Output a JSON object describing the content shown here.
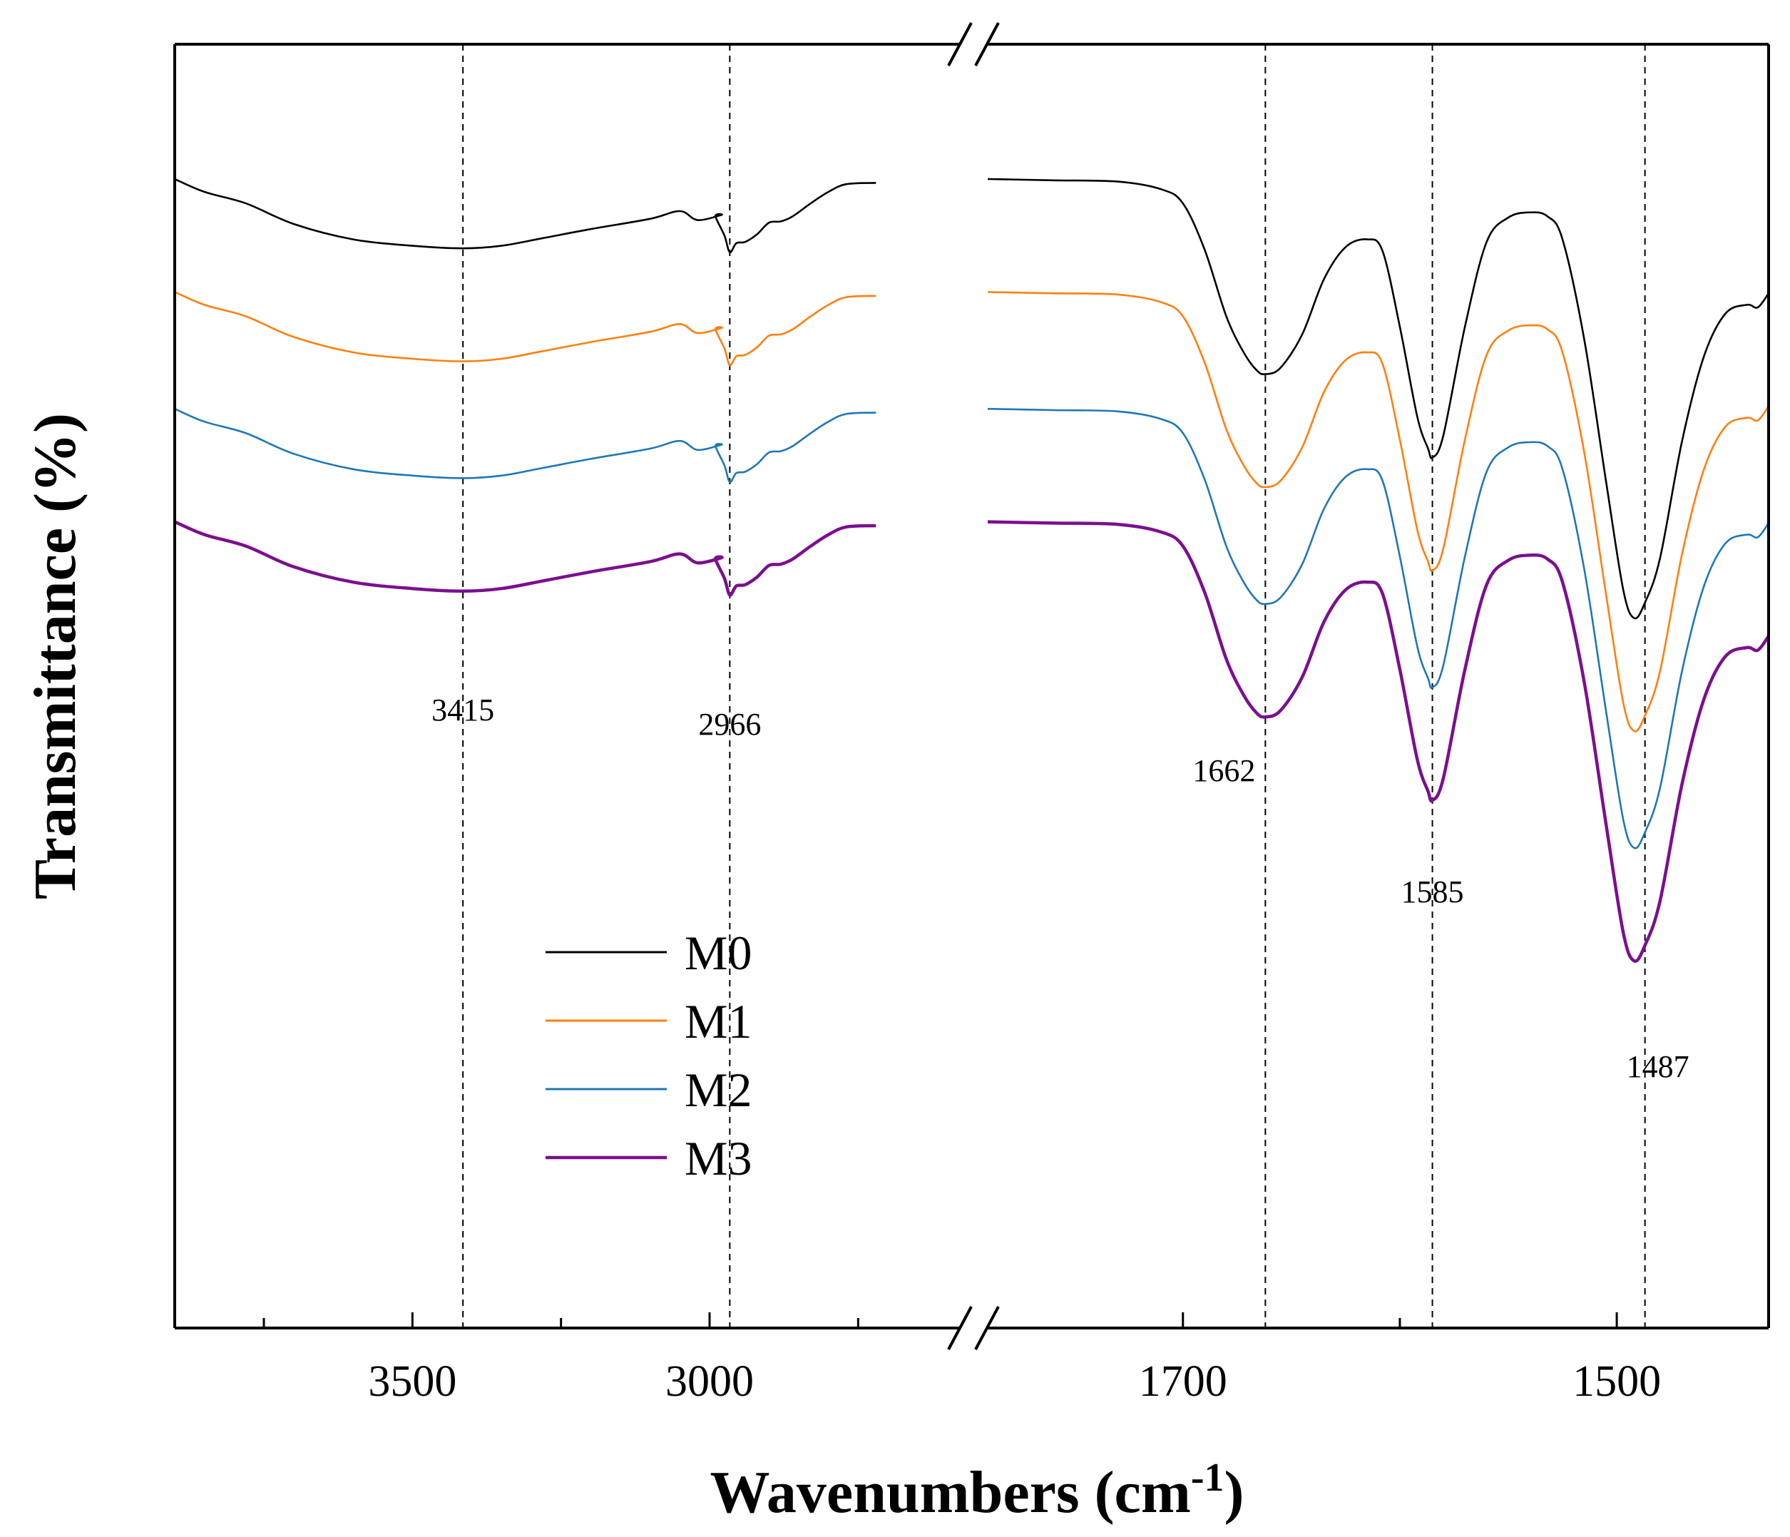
{
  "chart_data": {
    "type": "line",
    "title": "",
    "xlabel": "Wavenumbers (cm",
    "xlabel_superscript": "-1",
    "xlabel_suffix": ")",
    "ylabel": "Transmittance (%)",
    "x_break": true,
    "x_segments": [
      {
        "xlim": [
          3900,
          2580
        ],
        "ticks": [
          3500,
          3000
        ],
        "minor_ticks": [
          3750,
          3250,
          2750
        ]
      },
      {
        "xlim": [
          1790,
          1430
        ],
        "ticks": [
          1700,
          1500
        ],
        "minor_ticks": [
          1600
        ]
      }
    ],
    "yaxis_ticks_shown": false,
    "ylim": [
      0,
      100
    ],
    "reference_lines": [
      {
        "x": 3415,
        "label": "3415"
      },
      {
        "x": 2966,
        "label": "2966"
      },
      {
        "x": 1662,
        "label": "1662"
      },
      {
        "x": 1585,
        "label": "1585"
      },
      {
        "x": 1487,
        "label": "1487"
      }
    ],
    "series": [
      {
        "name": "M0",
        "color": "#000000",
        "offset": 0,
        "seg1": [
          [
            3900,
            89.5
          ],
          [
            3850,
            88.5
          ],
          [
            3780,
            87.6
          ],
          [
            3700,
            86
          ],
          [
            3600,
            84.8
          ],
          [
            3500,
            84.3
          ],
          [
            3415,
            84.1
          ],
          [
            3350,
            84.3
          ],
          [
            3280,
            84.9
          ],
          [
            3200,
            85.6
          ],
          [
            3100,
            86.4
          ],
          [
            3050,
            87
          ],
          [
            3020,
            86.3
          ],
          [
            2980,
            86.7
          ],
          [
            2990,
            86.6
          ],
          [
            2975,
            85.1
          ],
          [
            2966,
            83.8
          ],
          [
            2955,
            84.5
          ],
          [
            2940,
            84.6
          ],
          [
            2920,
            85.2
          ],
          [
            2900,
            86.1
          ],
          [
            2880,
            86.2
          ],
          [
            2860,
            86.6
          ],
          [
            2830,
            87.6
          ],
          [
            2800,
            88.5
          ],
          [
            2770,
            89.1
          ],
          [
            2720,
            89.2
          ]
        ],
        "seg2": [
          [
            1790,
            89.5
          ],
          [
            1760,
            89.4
          ],
          [
            1730,
            89.3
          ],
          [
            1710,
            88.7
          ],
          [
            1700,
            87.6
          ],
          [
            1690,
            84
          ],
          [
            1680,
            78.8
          ],
          [
            1672,
            76
          ],
          [
            1666,
            74.6
          ],
          [
            1662,
            74.3
          ],
          [
            1655,
            74.8
          ],
          [
            1645,
            77.4
          ],
          [
            1635,
            81.7
          ],
          [
            1625,
            84.2
          ],
          [
            1615,
            84.8
          ],
          [
            1608,
            83.9
          ],
          [
            1600,
            78
          ],
          [
            1592,
            71
          ],
          [
            1587,
            68.5
          ],
          [
            1585,
            67.8
          ],
          [
            1580,
            69.5
          ],
          [
            1570,
            78
          ],
          [
            1560,
            84.6
          ],
          [
            1550,
            86.5
          ],
          [
            1540,
            86.9
          ],
          [
            1532,
            86.6
          ],
          [
            1525,
            84.8
          ],
          [
            1515,
            77
          ],
          [
            1505,
            66
          ],
          [
            1497,
            57.5
          ],
          [
            1492,
            55.3
          ],
          [
            1487,
            56.5
          ],
          [
            1480,
            60
          ],
          [
            1470,
            69
          ],
          [
            1460,
            75.6
          ],
          [
            1450,
            79
          ],
          [
            1440,
            79.7
          ],
          [
            1435,
            79.5
          ],
          [
            1430,
            80.6
          ]
        ]
      },
      {
        "name": "M1",
        "color": "#ff7f0e",
        "offset": -8.8
      },
      {
        "name": "M2",
        "color": "#1f77b4",
        "offset": -17.9
      },
      {
        "name": "M3",
        "color": "#7b0f8e",
        "offset": -26.7
      }
    ]
  },
  "legend": {
    "placement": "center-left",
    "entries": [
      {
        "label": "M0",
        "color": "#000000"
      },
      {
        "label": "M1",
        "color": "#ff7f0e"
      },
      {
        "label": "M2",
        "color": "#1f77b4"
      },
      {
        "label": "M3",
        "color": "#7b0f8e"
      }
    ]
  }
}
